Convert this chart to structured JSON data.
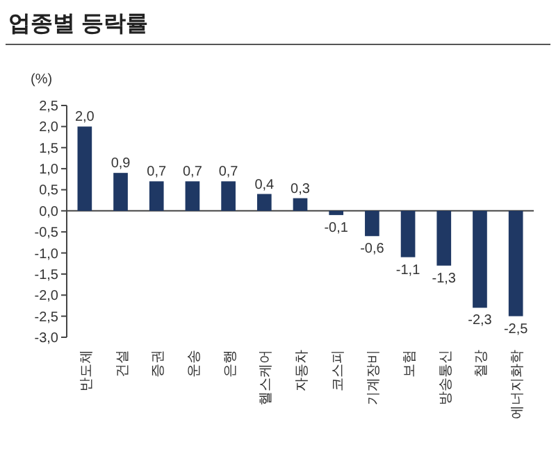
{
  "chart_data": {
    "type": "bar",
    "title": "업종별 등락률",
    "ylabel": "(%)",
    "categories": [
      "반도체",
      "건설",
      "증권",
      "운송",
      "은행",
      "헬스케어",
      "자동차",
      "코스피",
      "기계장비",
      "보험",
      "방송통신",
      "철강",
      "에너지화학"
    ],
    "values": [
      2.0,
      0.9,
      0.7,
      0.7,
      0.7,
      0.4,
      0.3,
      -0.1,
      -0.6,
      -1.1,
      -1.3,
      -2.3,
      -2.5
    ],
    "value_labels": [
      "2,0",
      "0,9",
      "0,7",
      "0,7",
      "0,7",
      "0,4",
      "0,3",
      "-0,1",
      "-0,6",
      "-1,1",
      "-1,3",
      "-2,3",
      "-2,5"
    ],
    "color": "#1f3864",
    "ylim": [
      -3.0,
      2.5
    ],
    "yticks": [
      {
        "value": 2.5,
        "label": "2,5"
      },
      {
        "value": 2.0,
        "label": "2,0"
      },
      {
        "value": 1.5,
        "label": "1,5"
      },
      {
        "value": 1.0,
        "label": "1,0"
      },
      {
        "value": 0.5,
        "label": "0,5"
      },
      {
        "value": 0.0,
        "label": "0,0"
      },
      {
        "value": -0.5,
        "label": "-0,5"
      },
      {
        "value": -1.0,
        "label": "-1,0"
      },
      {
        "value": -1.5,
        "label": "-1,5"
      },
      {
        "value": -2.0,
        "label": "-2,0"
      },
      {
        "value": -2.5,
        "label": "-2,5"
      },
      {
        "value": -3.0,
        "label": "-3,0"
      }
    ]
  }
}
